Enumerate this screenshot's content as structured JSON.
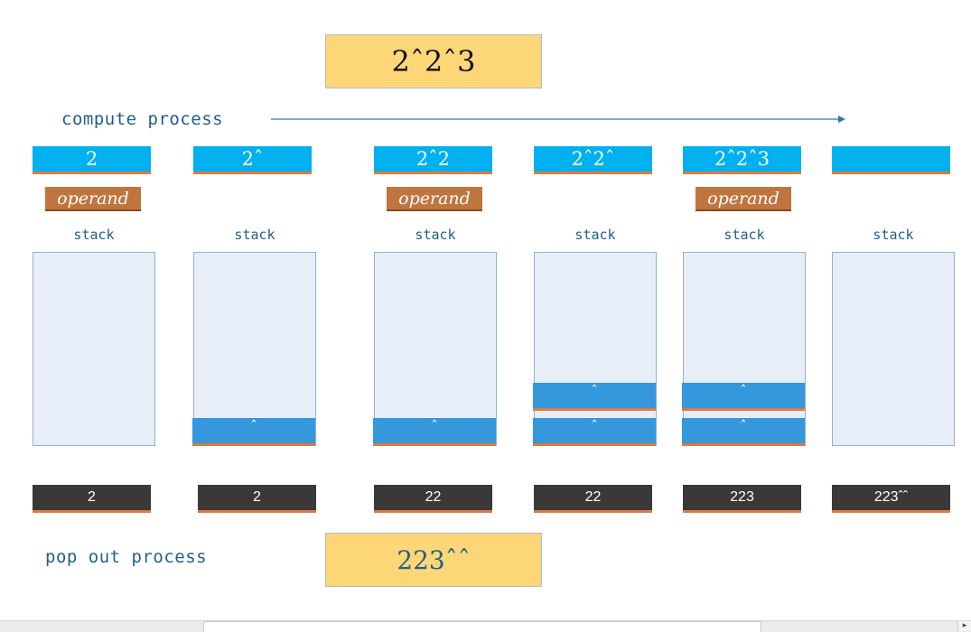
{
  "expression": "2ˆ2ˆ3",
  "result": "223ˆˆ",
  "compute_label": "compute process",
  "popout_label": "pop out process",
  "stack_label": "stack",
  "operand_label": "operand",
  "steps": [
    {
      "input": "2",
      "operand": true,
      "stack": [],
      "output": "2"
    },
    {
      "input": "2ˆ",
      "operand": false,
      "stack": [
        "ˆ"
      ],
      "output": "2"
    },
    {
      "input": "2ˆ2",
      "operand": true,
      "stack": [
        "ˆ"
      ],
      "output": "22"
    },
    {
      "input": "2ˆ2ˆ",
      "operand": false,
      "stack": [
        "ˆ",
        "ˆ"
      ],
      "output": "22"
    },
    {
      "input": "2ˆ2ˆ3",
      "operand": true,
      "stack": [
        "ˆ",
        "ˆ"
      ],
      "output": "223"
    },
    {
      "input": "",
      "operand": false,
      "stack": [],
      "output": "223ˆˆ"
    }
  ],
  "colors": {
    "input_bar": "#00b0f0",
    "operand_tag": "#c0753f",
    "stack_cell": "#3597dc",
    "output_bar": "#3b3838",
    "expression_box": "#fdd777",
    "label_text": "#1f5f8b"
  },
  "scrollbar_icon": "scroll-right-arrow-icon"
}
